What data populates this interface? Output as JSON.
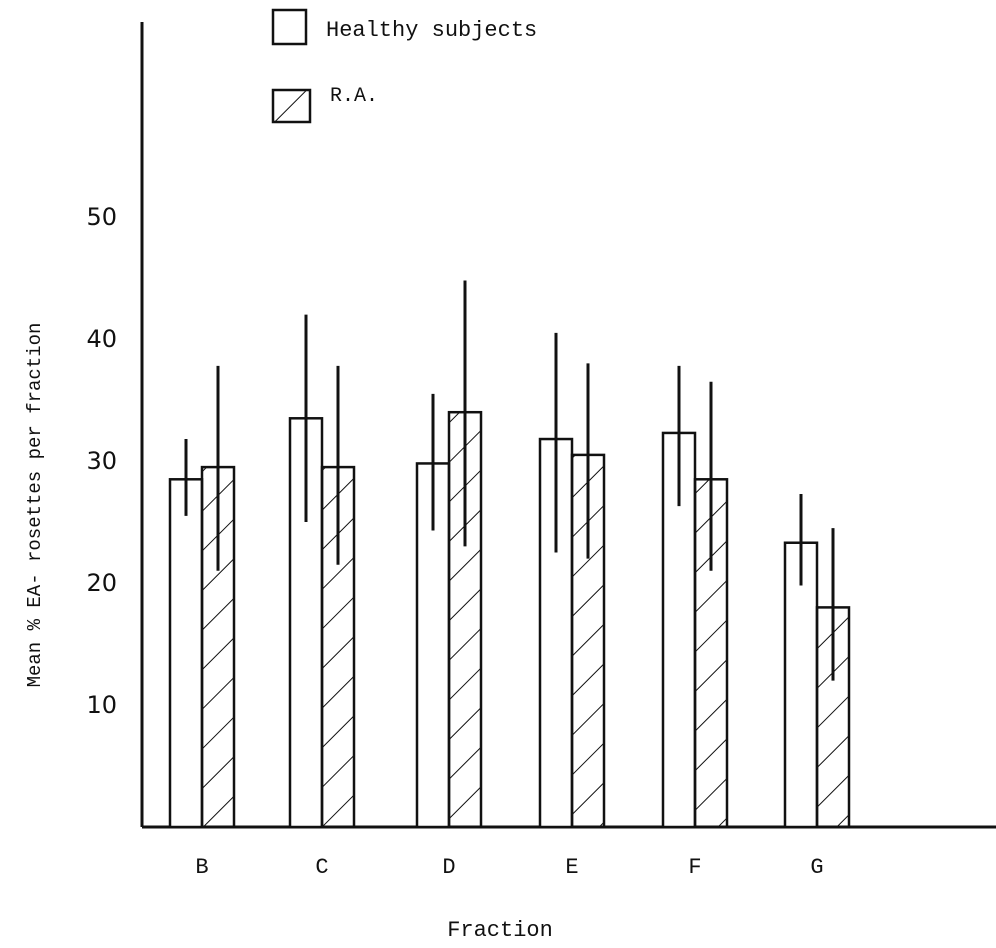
{
  "chart_data": {
    "type": "bar",
    "ylabel": "Mean % EA- rosettes per fraction",
    "xlabel": "Fraction",
    "categories": [
      "B",
      "C",
      "D",
      "E",
      "F",
      "G"
    ],
    "ylim": [
      0,
      60
    ],
    "yticks": [
      10,
      20,
      30,
      40,
      50
    ],
    "grid": false,
    "legend_position": "top-left",
    "series": [
      {
        "name": "Healthy subjects",
        "pattern": "open",
        "values": [
          28.5,
          33.5,
          29.8,
          31.8,
          32.3,
          23.3
        ],
        "error_low": [
          25.5,
          25.0,
          24.3,
          22.5,
          26.3,
          19.8
        ],
        "error_high": [
          31.8,
          42.0,
          35.5,
          40.5,
          37.8,
          27.3
        ]
      },
      {
        "name": "R.A.",
        "pattern": "hatched",
        "values": [
          29.5,
          29.5,
          34.0,
          30.5,
          28.5,
          18.0
        ],
        "error_low": [
          21.0,
          21.5,
          23.0,
          22.0,
          21.0,
          12.0
        ],
        "error_high": [
          37.8,
          37.8,
          44.8,
          38.0,
          36.5,
          24.5
        ]
      }
    ]
  },
  "colors": {
    "ink": "#111111",
    "background": "#ffffff"
  }
}
